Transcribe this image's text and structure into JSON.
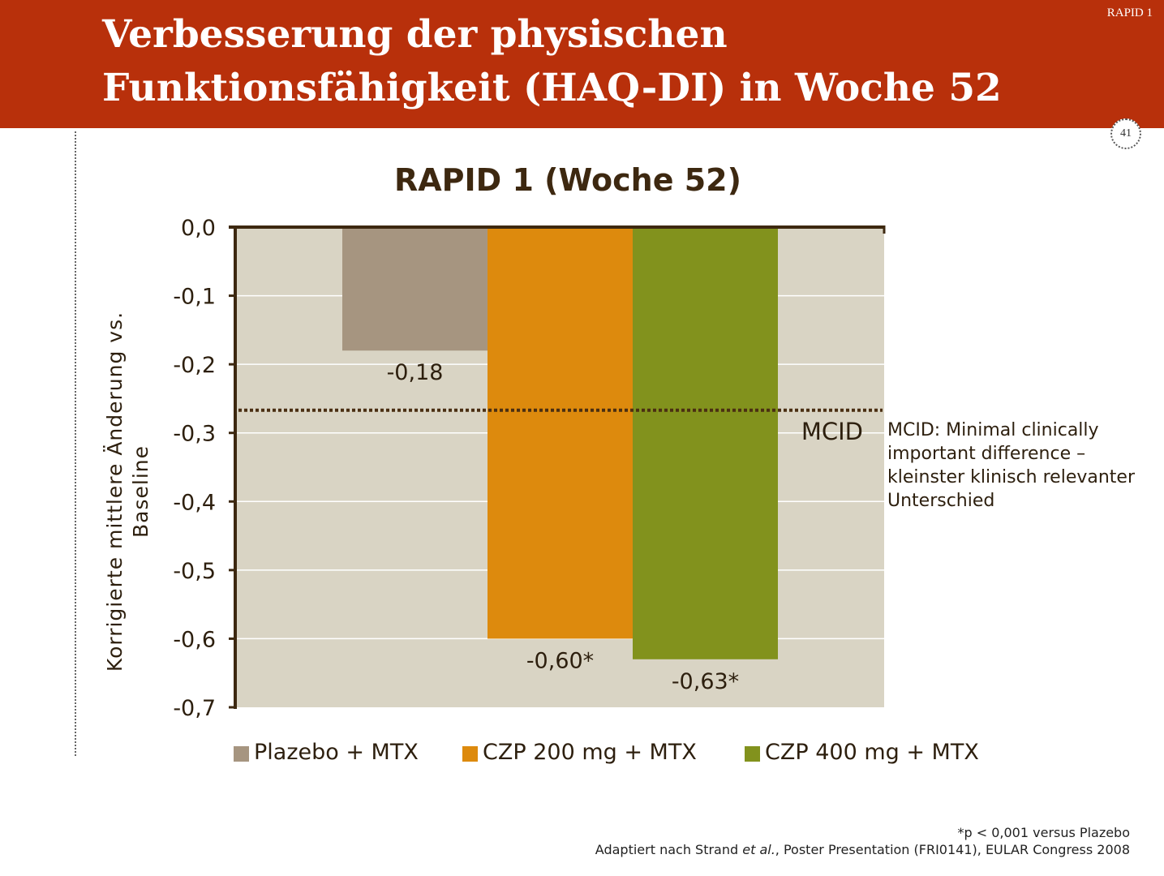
{
  "header": {
    "title": "Verbesserung der physischen Funktionsfähigkeit (HAQ-DI) in Woche 52",
    "tag": "RAPID 1",
    "page_number": "41"
  },
  "colors": {
    "header_bg": "#b8300b",
    "plot_bg": "#d9d4c4",
    "axis": "#3d2810",
    "placebo": "#a69580",
    "czp200": "#dd8a0d",
    "czp400": "#82921d"
  },
  "chart_data": {
    "type": "bar",
    "title": "RAPID 1 (Woche 52)",
    "ylabel": "Korrigierte mittlere Änderung vs. Baseline",
    "xlabel": "",
    "ylim": [
      -0.7,
      0.0
    ],
    "yticks": [
      0.0,
      -0.1,
      -0.2,
      -0.3,
      -0.4,
      -0.5,
      -0.6,
      -0.7
    ],
    "ytick_labels": [
      "0,0",
      "-0,1",
      "-0,2",
      "-0,3",
      "-0,4",
      "-0,5",
      "-0,6",
      "-0,7"
    ],
    "grid": true,
    "legend_position": "bottom",
    "categories": [
      "Plazebo + MTX",
      "CZP 200 mg + MTX",
      "CZP 400 mg + MTX"
    ],
    "values": [
      -0.18,
      -0.6,
      -0.63
    ],
    "data_labels": [
      "-0,18",
      "-0,60*",
      "-0,63*"
    ],
    "reference_line": {
      "value": -0.267,
      "label": "MCID",
      "style": "dotted"
    }
  },
  "annotation": {
    "mcid_definition": "MCID: Minimal clinically important difference – kleinster klinisch relevanter Unterschied"
  },
  "footnotes": {
    "significance": "*p < 0,001 versus Plazebo",
    "source_prefix": "Adaptiert nach Strand ",
    "source_italic": "et al.",
    "source_suffix": ", Poster Presentation (FRI0141), EULAR Congress 2008"
  }
}
